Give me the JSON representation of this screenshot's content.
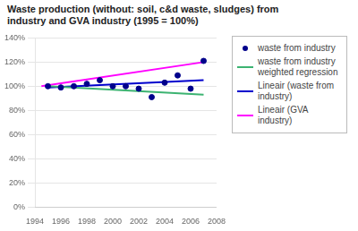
{
  "chart_data": {
    "type": "scatter",
    "title": "Waste production (without: soil, c&d waste, sludges) from\nindustry and GVA industry (1995 = 100%)",
    "series": [
      {
        "name": "waste from industry",
        "type": "scatter",
        "marker": "circle",
        "color": "#00008B",
        "x": [
          1995,
          1996,
          1997,
          1998,
          1999,
          2000,
          2001,
          2002,
          2003,
          2004,
          2005,
          2006,
          2007
        ],
        "values": [
          100,
          99,
          100,
          102,
          105,
          100,
          100,
          98,
          91,
          103,
          109,
          98,
          121
        ]
      },
      {
        "name": "waste from industry\nweighted regression",
        "type": "line",
        "line_style": "solid",
        "color": "#3CB371",
        "x": [
          1995,
          2007
        ],
        "values": [
          100,
          93
        ]
      },
      {
        "name": "Lineair (waste from\nindustry)",
        "type": "line",
        "line_style": "solid",
        "color": "#0000CD",
        "x": [
          1995,
          2007
        ],
        "values": [
          99,
          105
        ]
      },
      {
        "name": "Lineair (GVA industry)",
        "type": "line",
        "line_style": "solid",
        "color": "#FF00FF",
        "x": [
          1994.5,
          2007
        ],
        "values": [
          100,
          120
        ]
      }
    ],
    "xlim": [
      1994,
      2008
    ],
    "xticks": [
      1994,
      1996,
      1998,
      2000,
      2002,
      2004,
      2006,
      2008
    ],
    "ylim": [
      0,
      140
    ],
    "yticks": [
      {
        "value": 0,
        "label": "0%"
      },
      {
        "value": 20,
        "label": "20%"
      },
      {
        "value": 40,
        "label": "40%"
      },
      {
        "value": 60,
        "label": "60%"
      },
      {
        "value": 80,
        "label": "80%"
      },
      {
        "value": 100,
        "label": "100%"
      },
      {
        "value": 120,
        "label": "120%"
      },
      {
        "value": 140,
        "label": "140%"
      }
    ],
    "grid": "y",
    "legend": "right"
  }
}
